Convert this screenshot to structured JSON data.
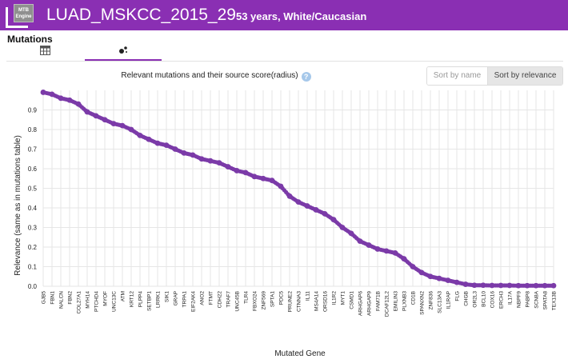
{
  "header": {
    "logo_text": "MTB Engine",
    "title": "LUAD_MSKCC_2015_29",
    "subtitle": "53 years, White/Caucasian"
  },
  "section": {
    "title": "Mutations"
  },
  "tabs": [
    {
      "name": "table-view",
      "icon": "table-icon"
    },
    {
      "name": "scatter-view",
      "icon": "scatter-plot-icon",
      "active": true
    }
  ],
  "chart_title": "Relevant mutations and their source score(radius)",
  "sort": {
    "by_name": "Sort by name",
    "by_relevance": "Sort by relevance",
    "active": "by_relevance"
  },
  "colors": {
    "brand": "#8a2fb3",
    "point": "#7b3aa8",
    "grid": "#e6e6e6"
  },
  "chart_data": {
    "type": "scatter",
    "title": "Relevant mutations and their source score(radius)",
    "xlabel": "Mutated Gene",
    "ylabel": "Relevance (same as in mutations table)",
    "ylim": [
      0,
      1.0
    ],
    "yticks": [
      0.0,
      0.1,
      0.2,
      0.3,
      0.4,
      0.5,
      0.6,
      0.7,
      0.8,
      0.9
    ],
    "grid": true,
    "categories": [
      "GJB5",
      "FBN1",
      "NALCN",
      "FBN2",
      "COL27A1",
      "MYH14",
      "PTCHD4",
      "MYOF",
      "UNC13C",
      "ATM",
      "KRT12",
      "PLPP4",
      "SETBP1",
      "LRRK1",
      "SIK1",
      "GRAP",
      "TRPA1",
      "EIF2AK4",
      "ANO2",
      "FTMT",
      "CDH22",
      "TRAF7",
      "UNC45B",
      "TLR4",
      "FBXO24",
      "ZNF569",
      "SPTA1",
      "PDC5",
      "PRUNE2",
      "CTNNA3",
      "IL11",
      "MS4A14",
      "ORSD16",
      "IL1R2",
      "MYT1",
      "CSMD1",
      "ARHGAP6",
      "ARHGAP9",
      "FAM71B",
      "DCAF12L2",
      "EMILIN3",
      "PLXNB3",
      "CD1B",
      "SPANXN2",
      "ZNF836",
      "SLC13A3",
      "IL1RAP",
      "FLG",
      "CHGB",
      "OR2L3",
      "BCL10",
      "COX16",
      "ERCH3",
      "IL17A",
      "NBPF9",
      "PABP8",
      "SCN8A",
      "SPATA8",
      "TEX13B"
    ],
    "values": [
      0.99,
      0.98,
      0.96,
      0.95,
      0.93,
      0.89,
      0.87,
      0.85,
      0.83,
      0.82,
      0.8,
      0.77,
      0.75,
      0.73,
      0.72,
      0.7,
      0.68,
      0.67,
      0.65,
      0.64,
      0.63,
      0.61,
      0.59,
      0.58,
      0.56,
      0.55,
      0.54,
      0.51,
      0.46,
      0.43,
      0.41,
      0.39,
      0.37,
      0.34,
      0.3,
      0.27,
      0.23,
      0.21,
      0.19,
      0.18,
      0.17,
      0.14,
      0.1,
      0.07,
      0.05,
      0.04,
      0.03,
      0.02,
      0.01,
      0.005,
      0.005,
      0.004,
      0.004,
      0.004,
      0.003,
      0.003,
      0.003,
      0.003,
      0.003
    ],
    "series": [
      {
        "name": "mutations",
        "values": [
          0.99,
          0.98,
          0.96,
          0.95,
          0.93,
          0.89,
          0.87,
          0.85,
          0.83,
          0.82,
          0.8,
          0.77,
          0.75,
          0.73,
          0.72,
          0.7,
          0.68,
          0.67,
          0.65,
          0.64,
          0.63,
          0.61,
          0.59,
          0.58,
          0.56,
          0.55,
          0.54,
          0.51,
          0.46,
          0.43,
          0.41,
          0.39,
          0.37,
          0.34,
          0.3,
          0.27,
          0.23,
          0.21,
          0.19,
          0.18,
          0.17,
          0.14,
          0.1,
          0.07,
          0.05,
          0.04,
          0.03,
          0.02,
          0.01,
          0.005,
          0.005,
          0.004,
          0.004,
          0.004,
          0.003,
          0.003,
          0.003,
          0.003,
          0.003
        ]
      }
    ]
  }
}
